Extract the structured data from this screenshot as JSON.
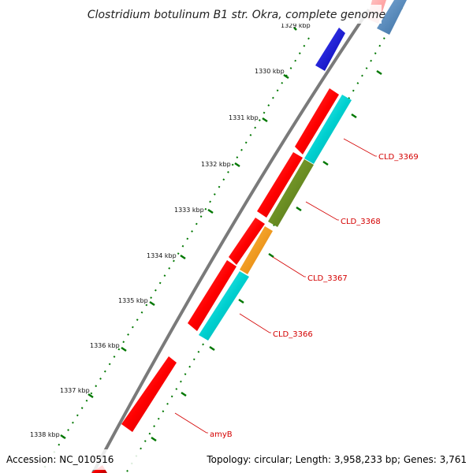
{
  "title": "Clostridium botulinum B1 str. Okra, complete genome",
  "footer": {
    "accession": "Accession: NC_010516",
    "topology": "Topology: circular; Length: 3,958,233 bp; Genes: 3,761"
  },
  "ticks": [
    {
      "label": "1329 kbp"
    },
    {
      "label": "1330 kbp"
    },
    {
      "label": "1331 kbp"
    },
    {
      "label": "1332 kbp"
    },
    {
      "label": "1333 kbp"
    },
    {
      "label": "1334 kbp"
    },
    {
      "label": "1335 kbp"
    },
    {
      "label": "1336 kbp"
    },
    {
      "label": "1337 kbp"
    },
    {
      "label": "1338 kbp"
    }
  ],
  "gene_labels": [
    "CLD_3369",
    "CLD_3368",
    "CLD_3367",
    "CLD_3366",
    "amyB"
  ],
  "colors": {
    "cds": "#ff0000",
    "cds_alt": "#0000ee",
    "steelblue": "#4682b4",
    "cyan": "#00cccc",
    "olive": "#6b8e23",
    "orange": "#ff9900",
    "backbone": "#888888",
    "tick": "#007700",
    "label": "#d40000"
  }
}
